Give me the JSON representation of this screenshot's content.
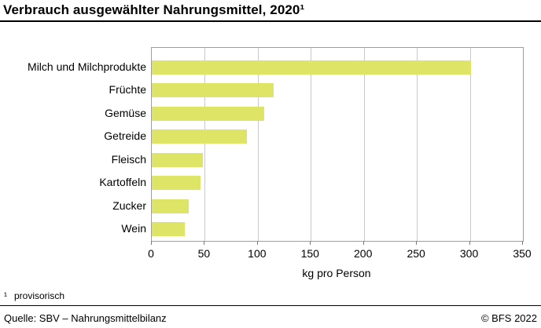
{
  "header": {
    "title": "Verbrauch ausgewählter Nahrungsmittel, 2020¹"
  },
  "chart_data": {
    "type": "bar",
    "orientation": "horizontal",
    "categories": [
      "Milch und Milchprodukte",
      "Früchte",
      "Gemüse",
      "Getreide",
      "Fleisch",
      "Kartoffeln",
      "Zucker",
      "Wein"
    ],
    "values": [
      301,
      115,
      106,
      90,
      48,
      46,
      35,
      31
    ],
    "title": "Verbrauch ausgewählter Nahrungsmittel, 2020¹",
    "xlabel": "kg pro Person",
    "ylabel": "",
    "xlim": [
      0,
      350
    ],
    "xticks": [
      0,
      50,
      100,
      150,
      200,
      250,
      300,
      350
    ],
    "grid": true,
    "legend": false,
    "bar_color": "#dde466"
  },
  "footnote": {
    "marker": "¹",
    "text": "provisorisch"
  },
  "footer": {
    "source": "Quelle: SBV – Nahrungsmittelbilanz",
    "copyright": "© BFS 2022"
  }
}
